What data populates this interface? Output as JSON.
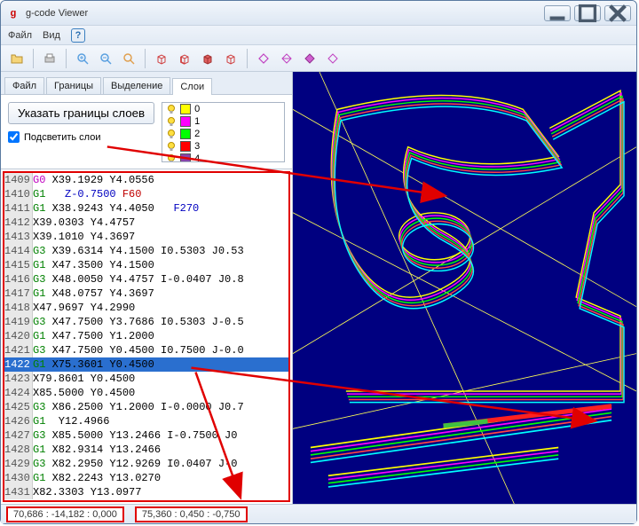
{
  "window": {
    "title": "g-code Viewer"
  },
  "menubar": {
    "file": "Файл",
    "view": "Вид"
  },
  "tabs": {
    "file": "Файл",
    "bounds": "Границы",
    "selection": "Выделение",
    "layers": "Слои"
  },
  "panel": {
    "button_label": "Указать границы слоев",
    "checkbox_label": "Подсветить слои",
    "checkbox_checked": true
  },
  "layers": [
    {
      "label": "0",
      "color": "#ffff00"
    },
    {
      "label": "1",
      "color": "#ff00ff"
    },
    {
      "label": "2",
      "color": "#00ff00"
    },
    {
      "label": "3",
      "color": "#ff0000"
    },
    {
      "label": "4",
      "color": "#8844aa"
    }
  ],
  "code": {
    "selected_index": 13,
    "lines": [
      {
        "n": 1409,
        "t": [
          [
            "G0",
            "tok-g0"
          ],
          [
            " X39.1929 Y4.0556",
            "tok-x"
          ]
        ]
      },
      {
        "n": 1410,
        "t": [
          [
            "G1",
            "tok-g1"
          ],
          [
            "   Z-0.7500 ",
            "tok-z"
          ],
          [
            "F60",
            "tok-f"
          ]
        ]
      },
      {
        "n": 1411,
        "t": [
          [
            "G1",
            "tok-g1"
          ],
          [
            " X38.9243 Y4.4050   ",
            "tok-x"
          ],
          [
            "F270",
            "tok-f2"
          ]
        ]
      },
      {
        "n": 1412,
        "t": [
          [
            "X39.0303 Y4.4757",
            "tok-x"
          ]
        ]
      },
      {
        "n": 1413,
        "t": [
          [
            "X39.1010 Y4.3697",
            "tok-x"
          ]
        ]
      },
      {
        "n": 1414,
        "t": [
          [
            "G3",
            "tok-g3"
          ],
          [
            " X39.6314 Y4.1500 I0.5303 J0.53",
            "tok-x"
          ]
        ]
      },
      {
        "n": 1415,
        "t": [
          [
            "G1",
            "tok-g1"
          ],
          [
            " X47.3500 Y4.1500",
            "tok-x"
          ]
        ]
      },
      {
        "n": 1416,
        "t": [
          [
            "G3",
            "tok-g3"
          ],
          [
            " X48.0050 Y4.4757 I-0.0407 J0.8",
            "tok-x"
          ]
        ]
      },
      {
        "n": 1417,
        "t": [
          [
            "G1",
            "tok-g1"
          ],
          [
            " X48.0757 Y4.3697",
            "tok-x"
          ]
        ]
      },
      {
        "n": 1418,
        "t": [
          [
            "X47.9697 Y4.2990",
            "tok-x"
          ]
        ]
      },
      {
        "n": 1419,
        "t": [
          [
            "G3",
            "tok-g3"
          ],
          [
            " X47.7500 Y3.7686 I0.5303 J-0.5",
            "tok-x"
          ]
        ]
      },
      {
        "n": 1420,
        "t": [
          [
            "G1",
            "tok-g1"
          ],
          [
            " X47.7500 Y1.2000",
            "tok-x"
          ]
        ]
      },
      {
        "n": 1421,
        "t": [
          [
            "G3",
            "tok-g3"
          ],
          [
            " X47.7500 Y0.4500 I0.7500 J-0.0",
            "tok-x"
          ]
        ]
      },
      {
        "n": 1422,
        "t": [
          [
            "G1",
            "tok-g1"
          ],
          [
            " X75.3601 Y0.4500",
            "tok-x"
          ]
        ]
      },
      {
        "n": 1423,
        "t": [
          [
            "X79.8601 Y0.4500",
            "tok-x"
          ]
        ]
      },
      {
        "n": 1424,
        "t": [
          [
            "X85.5000 Y0.4500",
            "tok-x"
          ]
        ]
      },
      {
        "n": 1425,
        "t": [
          [
            "G3",
            "tok-g3"
          ],
          [
            " X86.2500 Y1.2000 I-0.0000 J0.7",
            "tok-x"
          ]
        ]
      },
      {
        "n": 1426,
        "t": [
          [
            "G1",
            "tok-g1"
          ],
          [
            "  Y12.4966",
            "tok-x"
          ]
        ]
      },
      {
        "n": 1427,
        "t": [
          [
            "G3",
            "tok-g3"
          ],
          [
            " X85.5000 Y13.2466 I-0.7500 J0",
            "tok-x"
          ]
        ]
      },
      {
        "n": 1428,
        "t": [
          [
            "G1",
            "tok-g1"
          ],
          [
            " X82.9314 Y13.2466",
            "tok-x"
          ]
        ]
      },
      {
        "n": 1429,
        "t": [
          [
            "G3",
            "tok-g3"
          ],
          [
            " X82.2950 Y12.9269 I0.0407 J-0",
            "tok-x"
          ]
        ]
      },
      {
        "n": 1430,
        "t": [
          [
            "G1",
            "tok-g1"
          ],
          [
            " X82.2243 Y13.0270",
            "tok-x"
          ]
        ]
      },
      {
        "n": 1431,
        "t": [
          [
            "X82.3303 Y13.0977",
            "tok-x"
          ]
        ]
      }
    ]
  },
  "statusbar": {
    "coord1": "70,686 : -14,182 :   0,000",
    "coord2": "75,360 :   0,450 :  -0,750"
  },
  "viewer": {
    "background": "#000080",
    "path_colors": [
      "#ffff00",
      "#ff00ff",
      "#00ff00",
      "#ff0000",
      "#00ffff"
    ],
    "highlight_line_color": "#ff0000",
    "grid_color": "#ffff66"
  },
  "annotations": {
    "arrow_color": "#e00000"
  }
}
